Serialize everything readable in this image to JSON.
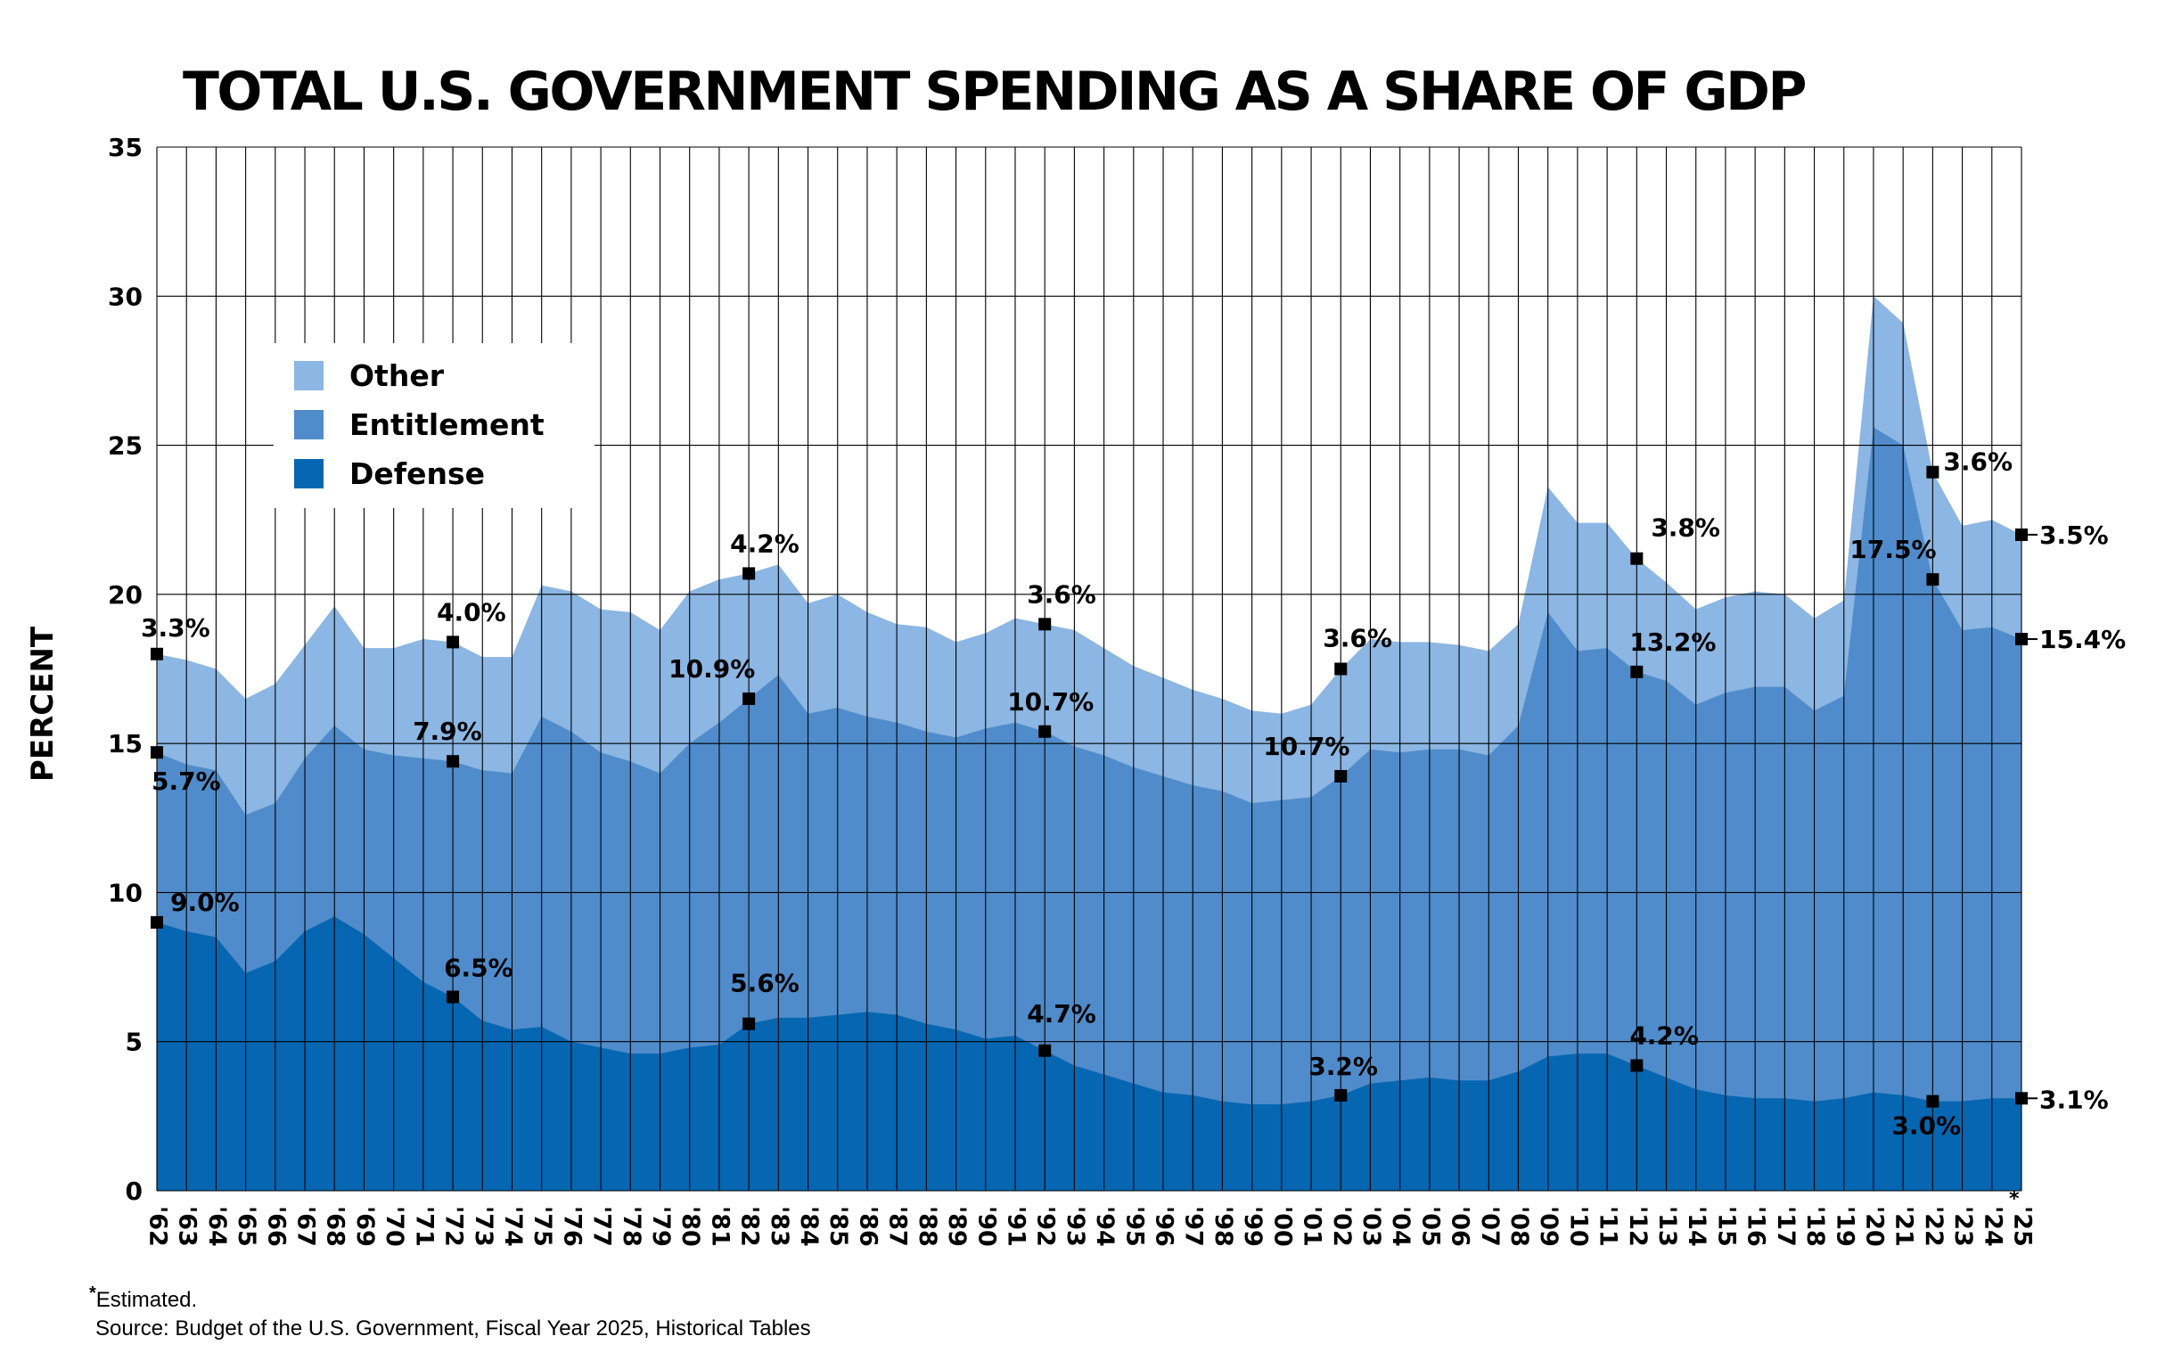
{
  "title": "TOTAL U.S. GOVERNMENT SPENDING AS A SHARE OF GDP",
  "footnote_marker": "*",
  "footnote_text": "Estimated.",
  "source": "Source: Budget of the U.S. Government, Fiscal Year 2025, Historical Tables",
  "colors": {
    "other": "#8cb6e3",
    "entitlement": "#508ccb",
    "defense": "#0666b1",
    "grid": "#000000",
    "marker": "#000000"
  },
  "chart_data": {
    "type": "area",
    "stacked": true,
    "ylabel": "PERCENT",
    "ylim": [
      0,
      35
    ],
    "yticks": [
      0,
      5,
      10,
      15,
      20,
      25,
      30,
      35
    ],
    "grid": true,
    "legend_position": "top-left",
    "x": [
      "'62",
      "'63",
      "'64",
      "'65",
      "'66",
      "'67",
      "'68",
      "'69",
      "'70",
      "'71",
      "'72",
      "'73",
      "'74",
      "'75",
      "'76",
      "'77",
      "'78",
      "'79",
      "'80",
      "'81",
      "'82",
      "'83",
      "'84",
      "'85",
      "'86",
      "'87",
      "'88",
      "'89",
      "'90",
      "'91",
      "'92",
      "'93",
      "'94",
      "'95",
      "'96",
      "'97",
      "'98",
      "'99",
      "'00",
      "'01",
      "'02",
      "'03",
      "'04",
      "'05",
      "'06",
      "'07",
      "'08",
      "'09",
      "'10",
      "'11",
      "'12",
      "'13",
      "'14",
      "'15",
      "'16",
      "'17",
      "'18",
      "'19",
      "'20",
      "'21",
      "'22",
      "'23",
      "'24",
      "'25"
    ],
    "x_label_suffixes": {
      "'25": "*"
    },
    "series": [
      {
        "name": "Defense",
        "color_key": "defense",
        "values": [
          9.0,
          8.7,
          8.5,
          7.3,
          7.7,
          8.7,
          9.2,
          8.6,
          7.8,
          7.0,
          6.5,
          5.7,
          5.4,
          5.5,
          5.0,
          4.8,
          4.6,
          4.6,
          4.8,
          4.9,
          5.6,
          5.8,
          5.8,
          5.9,
          6.0,
          5.9,
          5.6,
          5.4,
          5.1,
          5.2,
          4.7,
          4.2,
          3.9,
          3.6,
          3.3,
          3.2,
          3.0,
          2.9,
          2.9,
          3.0,
          3.2,
          3.6,
          3.7,
          3.8,
          3.7,
          3.7,
          4.0,
          4.5,
          4.6,
          4.6,
          4.2,
          3.8,
          3.4,
          3.2,
          3.1,
          3.1,
          3.0,
          3.1,
          3.3,
          3.2,
          3.0,
          3.0,
          3.1,
          3.1
        ]
      },
      {
        "name": "Entitlement",
        "color_key": "entitlement",
        "values": [
          5.7,
          5.6,
          5.6,
          5.3,
          5.3,
          5.8,
          6.4,
          6.2,
          6.8,
          7.5,
          7.9,
          8.4,
          8.6,
          10.4,
          10.4,
          9.9,
          9.8,
          9.4,
          10.2,
          10.8,
          10.9,
          11.5,
          10.2,
          10.3,
          9.9,
          9.8,
          9.8,
          9.8,
          10.4,
          10.5,
          10.7,
          10.7,
          10.7,
          10.6,
          10.6,
          10.4,
          10.4,
          10.1,
          10.2,
          10.2,
          10.7,
          11.2,
          11.0,
          11.0,
          11.1,
          10.9,
          11.6,
          14.9,
          13.5,
          13.6,
          13.2,
          13.3,
          12.9,
          13.5,
          13.8,
          13.8,
          13.1,
          13.5,
          22.3,
          21.8,
          17.5,
          15.8,
          15.8,
          15.4
        ]
      },
      {
        "name": "Other",
        "color_key": "other",
        "values": [
          3.3,
          3.5,
          3.4,
          3.9,
          4.0,
          3.8,
          4.0,
          3.4,
          3.6,
          4.0,
          4.0,
          3.8,
          3.9,
          4.4,
          4.7,
          4.8,
          5.0,
          4.8,
          5.1,
          4.8,
          4.2,
          3.7,
          3.7,
          3.8,
          3.5,
          3.3,
          3.5,
          3.2,
          3.2,
          3.5,
          3.6,
          3.9,
          3.6,
          3.4,
          3.3,
          3.2,
          3.1,
          3.1,
          2.9,
          3.1,
          3.6,
          3.7,
          3.7,
          3.6,
          3.5,
          3.5,
          3.4,
          4.2,
          4.3,
          4.2,
          3.8,
          3.3,
          3.2,
          3.2,
          3.2,
          3.1,
          3.1,
          3.2,
          4.4,
          4.1,
          3.6,
          3.5,
          3.6,
          3.5
        ]
      }
    ],
    "annotations": [
      {
        "x": "'62",
        "series": "Defense",
        "label": "9.0%"
      },
      {
        "x": "'62",
        "series": "Entitlement",
        "label": "5.7%"
      },
      {
        "x": "'62",
        "series": "Other",
        "label": "3.3%"
      },
      {
        "x": "'72",
        "series": "Defense",
        "label": "6.5%"
      },
      {
        "x": "'72",
        "series": "Entitlement",
        "label": "7.9%"
      },
      {
        "x": "'72",
        "series": "Other",
        "label": "4.0%"
      },
      {
        "x": "'82",
        "series": "Defense",
        "label": "5.6%"
      },
      {
        "x": "'82",
        "series": "Entitlement",
        "label": "10.9%"
      },
      {
        "x": "'82",
        "series": "Other",
        "label": "4.2%"
      },
      {
        "x": "'92",
        "series": "Defense",
        "label": "4.7%"
      },
      {
        "x": "'92",
        "series": "Entitlement",
        "label": "10.7%"
      },
      {
        "x": "'92",
        "series": "Other",
        "label": "3.6%"
      },
      {
        "x": "'02",
        "series": "Defense",
        "label": "3.2%"
      },
      {
        "x": "'02",
        "series": "Entitlement",
        "label": "10.7%"
      },
      {
        "x": "'02",
        "series": "Other",
        "label": "3.6%"
      },
      {
        "x": "'12",
        "series": "Defense",
        "label": "4.2%"
      },
      {
        "x": "'12",
        "series": "Entitlement",
        "label": "13.2%"
      },
      {
        "x": "'12",
        "series": "Other",
        "label": "3.8%"
      },
      {
        "x": "'22",
        "series": "Defense",
        "label": "3.0%"
      },
      {
        "x": "'22",
        "series": "Entitlement",
        "label": "17.5%"
      },
      {
        "x": "'22",
        "series": "Other",
        "label": "3.6%"
      },
      {
        "x": "'25",
        "series": "Defense",
        "label": "3.1%"
      },
      {
        "x": "'25",
        "series": "Entitlement",
        "label": "15.4%"
      },
      {
        "x": "'25",
        "series": "Other",
        "label": "3.5%"
      }
    ],
    "legend": [
      {
        "label": "Other",
        "color_key": "other"
      },
      {
        "label": "Entitlement",
        "color_key": "entitlement"
      },
      {
        "label": "Defense",
        "color_key": "defense"
      }
    ]
  }
}
